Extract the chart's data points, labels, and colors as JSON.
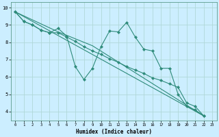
{
  "xlabel": "Humidex (Indice chaleur)",
  "bg_color": "#cceeff",
  "line_color": "#2e8b7a",
  "grid_color": "#b0d8d8",
  "xlim": [
    -0.5,
    23.5
  ],
  "ylim": [
    3.5,
    10.3
  ],
  "xticks": [
    0,
    1,
    2,
    3,
    4,
    5,
    6,
    7,
    8,
    9,
    10,
    11,
    12,
    13,
    14,
    15,
    16,
    17,
    18,
    19,
    20,
    21,
    22,
    23
  ],
  "yticks": [
    4,
    5,
    6,
    7,
    8,
    9,
    10
  ],
  "line1_x": [
    0,
    1,
    2,
    3,
    4,
    5,
    6,
    7,
    8,
    9,
    10,
    11,
    12,
    13,
    14,
    15,
    16,
    17,
    18,
    19,
    20,
    21,
    22
  ],
  "line1_y": [
    9.75,
    9.2,
    9.0,
    8.7,
    8.55,
    8.8,
    8.35,
    6.6,
    5.85,
    6.5,
    7.75,
    8.65,
    8.6,
    9.15,
    8.3,
    7.6,
    7.5,
    6.5,
    6.5,
    5.0,
    4.3,
    4.1,
    3.75
  ],
  "line2_x": [
    0,
    1,
    2,
    3,
    4,
    5,
    6,
    7,
    8,
    9,
    10,
    11,
    12,
    13,
    14,
    15,
    16,
    17,
    18,
    19,
    20,
    21,
    22
  ],
  "line2_y": [
    9.75,
    9.2,
    9.0,
    8.7,
    8.55,
    8.55,
    8.3,
    8.05,
    7.75,
    7.5,
    7.3,
    7.05,
    6.85,
    6.6,
    6.4,
    6.2,
    5.95,
    5.8,
    5.6,
    5.4,
    4.5,
    4.3,
    3.75
  ],
  "line3_x": [
    0,
    22
  ],
  "line3_y": [
    9.75,
    3.75
  ],
  "line4_x": [
    0,
    5,
    9,
    22
  ],
  "line4_y": [
    9.75,
    8.6,
    7.8,
    3.75
  ]
}
